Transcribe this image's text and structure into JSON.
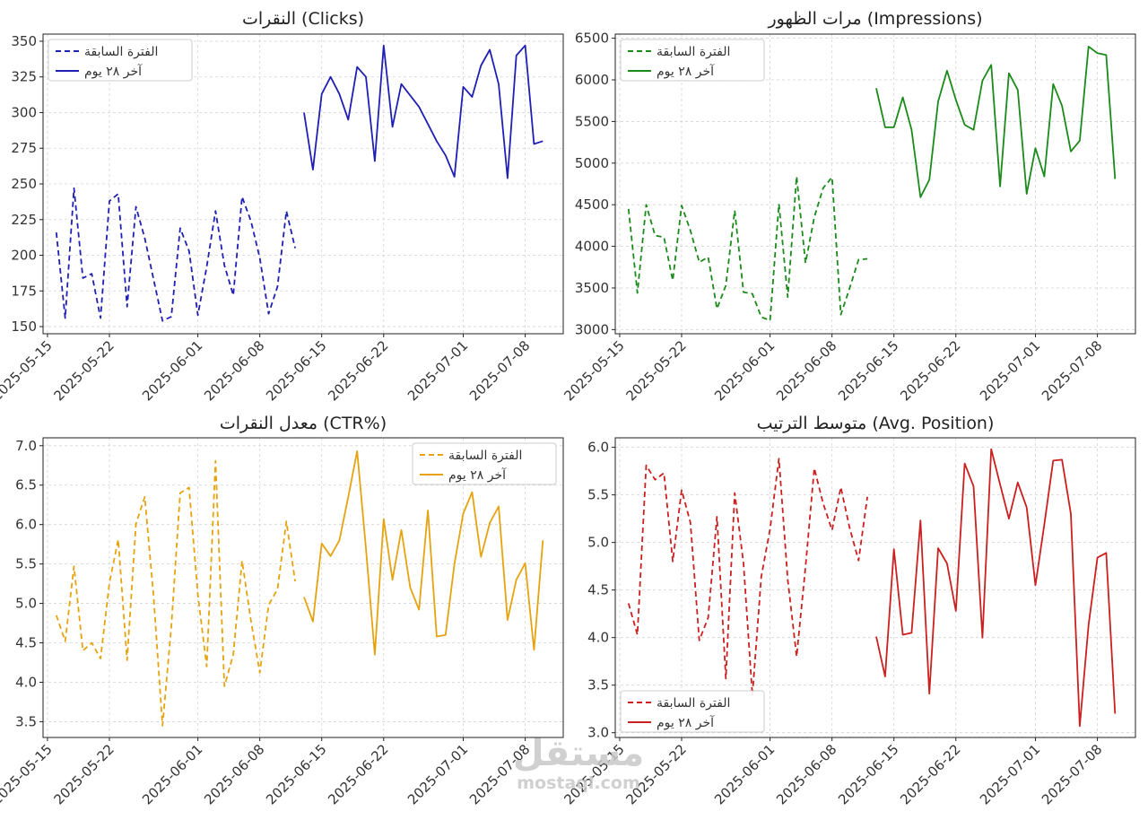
{
  "watermark": {
    "arabic": "مستقل",
    "latin": "mostaql.com"
  },
  "chart_data": [
    {
      "type": "line",
      "title": "النقرات (Clicks)",
      "color": "#1f1fb4",
      "ylim": [
        145,
        355
      ],
      "yticks": [
        150,
        175,
        200,
        225,
        250,
        275,
        300,
        325,
        350
      ],
      "legend": "top-left",
      "x_start": "2025-05-16",
      "xticks": [
        "2025-05-15",
        "2025-05-22",
        "2025-06-01",
        "2025-06-08",
        "2025-06-15",
        "2025-06-22",
        "2025-07-01",
        "2025-07-08"
      ],
      "series": [
        {
          "name": "الفترة السابقة",
          "style": "dashed",
          "start_index": 0,
          "values": [
            216,
            156,
            247,
            184,
            187,
            156,
            238,
            243,
            164,
            234,
            212,
            183,
            154,
            157,
            219,
            203,
            158,
            192,
            231,
            193,
            172,
            241,
            224,
            198,
            159,
            178,
            231,
            205
          ]
        },
        {
          "name": "آخر ٢٨ يوم",
          "style": "solid",
          "start_index": 28,
          "values": [
            300,
            260,
            313,
            325,
            313,
            295,
            332,
            325,
            266,
            347,
            290,
            320,
            312,
            304,
            292,
            280,
            270,
            255,
            318,
            311,
            333,
            344,
            320,
            254,
            340,
            347,
            278,
            280
          ]
        }
      ]
    },
    {
      "type": "line",
      "title": "مرات الظهور (Impressions)",
      "color": "#1a8a1a",
      "ylim": [
        2950,
        6550
      ],
      "yticks": [
        3000,
        3500,
        4000,
        4500,
        5000,
        5500,
        6000,
        6500
      ],
      "legend": "top-left",
      "x_start": "2025-05-16",
      "xticks": [
        "2025-05-15",
        "2025-05-22",
        "2025-06-01",
        "2025-06-08",
        "2025-06-15",
        "2025-06-22",
        "2025-07-01",
        "2025-07-08"
      ],
      "series": [
        {
          "name": "الفترة السابقة",
          "style": "dashed",
          "start_index": 0,
          "values": [
            4450,
            3440,
            4500,
            4130,
            4110,
            3590,
            4490,
            4190,
            3810,
            3870,
            3250,
            3530,
            4430,
            3450,
            3430,
            3150,
            3110,
            4510,
            3390,
            4840,
            3800,
            4350,
            4700,
            4830,
            3180,
            3500,
            3840,
            3850
          ]
        },
        {
          "name": "آخر ٢٨ يوم",
          "style": "solid",
          "start_index": 28,
          "values": [
            5900,
            5430,
            5430,
            5790,
            5400,
            4590,
            4800,
            5740,
            6110,
            5760,
            5460,
            5400,
            5990,
            6180,
            4720,
            6080,
            5880,
            4630,
            5180,
            4840,
            5950,
            5690,
            5140,
            5270,
            6400,
            6320,
            6300,
            4810
          ]
        }
      ]
    },
    {
      "type": "line",
      "title": "معدل النقرات (CTR%)",
      "color": "#e6a30f",
      "ylim": [
        3.3,
        7.1
      ],
      "yticks": [
        3.5,
        4.0,
        4.5,
        5.0,
        5.5,
        6.0,
        6.5,
        7.0
      ],
      "legend": "top-right",
      "x_start": "2025-05-16",
      "xticks": [
        "2025-05-15",
        "2025-05-22",
        "2025-06-01",
        "2025-06-08",
        "2025-06-15",
        "2025-06-22",
        "2025-07-01",
        "2025-07-08"
      ],
      "series": [
        {
          "name": "الفترة السابقة",
          "style": "dashed",
          "start_index": 0,
          "values": [
            4.85,
            4.52,
            5.47,
            4.4,
            4.5,
            4.3,
            5.26,
            5.81,
            4.28,
            6.01,
            6.35,
            5.08,
            3.45,
            4.7,
            6.4,
            6.47,
            5.11,
            4.2,
            6.81,
            3.95,
            4.35,
            5.54,
            4.78,
            4.12,
            4.98,
            5.18,
            6.04,
            5.28
          ]
        },
        {
          "name": "آخر ٢٨ يوم",
          "style": "solid",
          "start_index": 28,
          "values": [
            5.08,
            4.77,
            5.76,
            5.6,
            5.8,
            6.35,
            6.93,
            5.7,
            4.35,
            6.07,
            5.3,
            5.93,
            5.2,
            4.92,
            6.18,
            4.58,
            4.6,
            5.5,
            6.14,
            6.41,
            5.59,
            6.02,
            6.23,
            4.79,
            5.3,
            5.51,
            4.41,
            5.8
          ]
        }
      ]
    },
    {
      "type": "line",
      "title": "متوسط الترتيب (Avg. Position)",
      "color": "#cc1f1f",
      "ylim": [
        2.95,
        6.1
      ],
      "yticks": [
        3.0,
        3.5,
        4.0,
        4.5,
        5.0,
        5.5,
        6.0
      ],
      "legend": "bottom-left",
      "x_start": "2025-05-16",
      "xticks": [
        "2025-05-15",
        "2025-05-22",
        "2025-06-01",
        "2025-06-08",
        "2025-06-15",
        "2025-06-22",
        "2025-07-01",
        "2025-07-08"
      ],
      "series": [
        {
          "name": "الفترة السابقة",
          "style": "dashed",
          "start_index": 0,
          "values": [
            4.36,
            4.03,
            5.81,
            5.66,
            5.73,
            4.8,
            5.55,
            5.21,
            3.97,
            4.21,
            5.27,
            3.57,
            5.52,
            4.78,
            3.39,
            4.64,
            5.14,
            5.88,
            4.61,
            3.8,
            4.74,
            5.78,
            5.41,
            5.13,
            5.58,
            5.15,
            4.81,
            5.48
          ]
        },
        {
          "name": "آخر ٢٨ يوم",
          "style": "solid",
          "start_index": 28,
          "values": [
            4.01,
            3.59,
            4.93,
            4.03,
            4.05,
            5.23,
            3.41,
            4.94,
            4.78,
            4.28,
            5.83,
            5.59,
            4.0,
            5.98,
            5.61,
            5.25,
            5.63,
            5.37,
            4.55,
            5.19,
            5.86,
            5.87,
            5.3,
            3.07,
            4.13,
            4.84,
            4.89,
            3.2
          ]
        }
      ]
    }
  ]
}
